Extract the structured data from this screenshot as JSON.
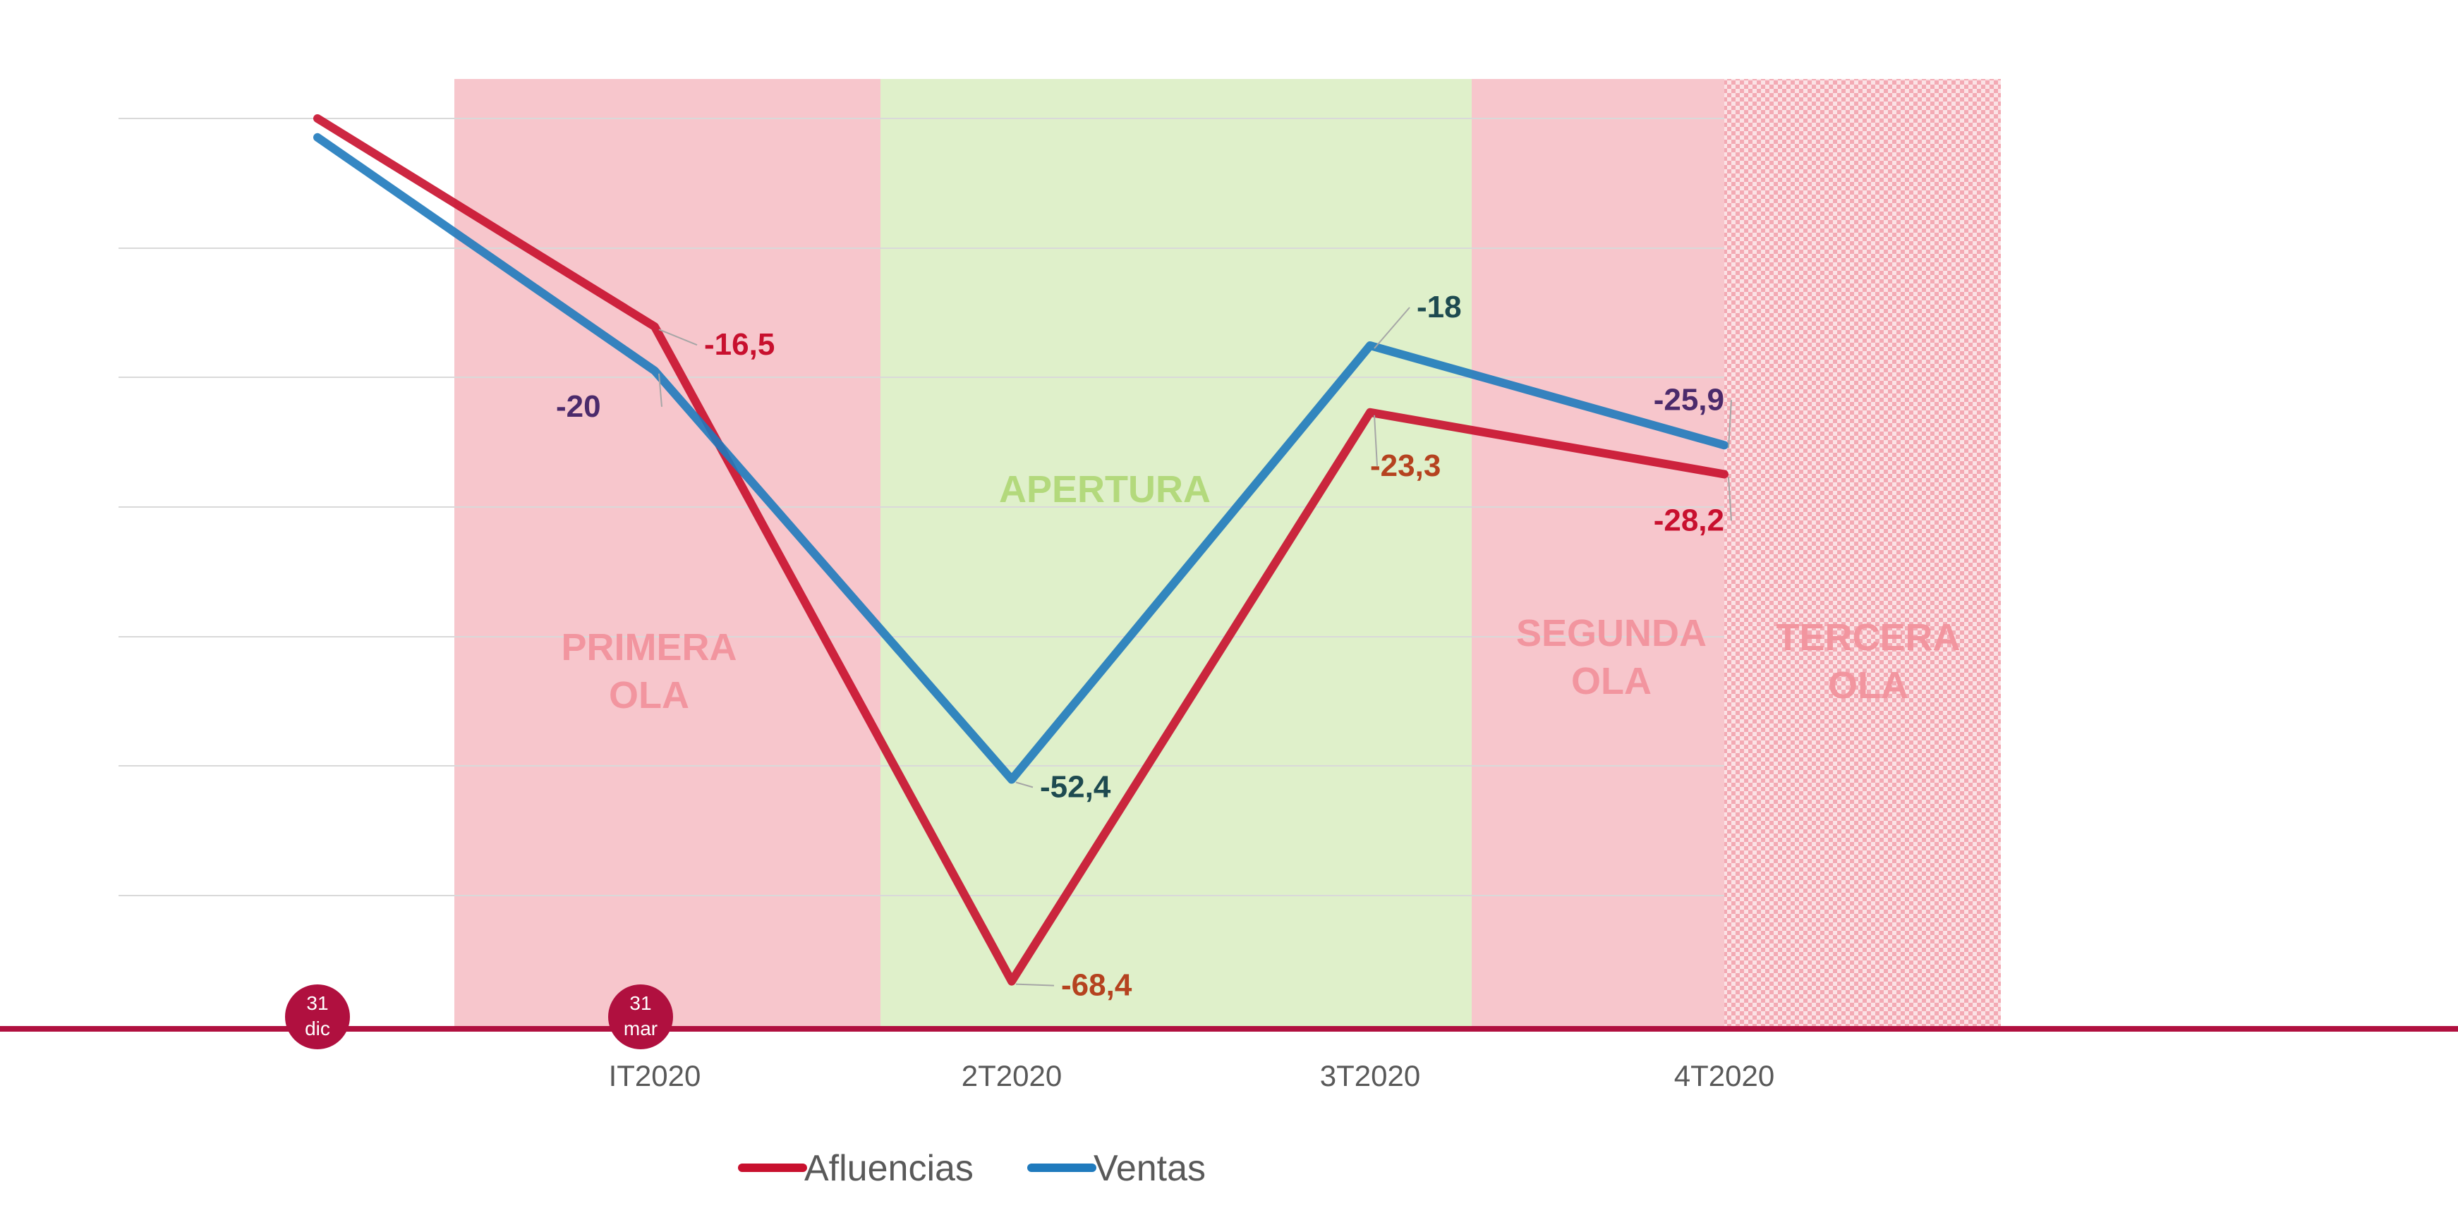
{
  "chart_data": {
    "type": "line",
    "categories": [
      "31 dic",
      "IT2020",
      "2T2020",
      "3T2020",
      "4T2020"
    ],
    "ylim": [
      -72,
      0
    ],
    "grid": true,
    "legend_position": "bottom",
    "series": [
      {
        "name": "Afluencias",
        "color": "#c8102e",
        "values": [
          0,
          -16.5,
          -68.4,
          -23.3,
          -28.2
        ],
        "labels": [
          "",
          "-16,5",
          "-68,4",
          "-23,3",
          "-28,2"
        ],
        "label_colors": [
          "",
          "#c8102e",
          "#b5421f",
          "#b5421f",
          "#c8102e"
        ]
      },
      {
        "name": "Ventas",
        "color": "#1f7abd",
        "values": [
          -1.5,
          -20,
          -52.4,
          -18,
          -25.9
        ],
        "labels": [
          "",
          "-20",
          "-52,4",
          "-18",
          "-25,9"
        ],
        "label_colors": [
          "",
          "#4b2a6b",
          "#1e4a50",
          "#1e4a50",
          "#4b2a6b"
        ]
      }
    ],
    "bands": [
      {
        "label_lines": [
          "PRIMERA",
          "OLA"
        ],
        "fill": "#f7c6cc",
        "text_color": "#f2959f",
        "pattern": false
      },
      {
        "label_lines": [
          "APERTURA"
        ],
        "fill": "#dff0ca",
        "text_color": "#b3d97c",
        "pattern": false
      },
      {
        "label_lines": [
          "SEGUNDA",
          "OLA"
        ],
        "fill": "#f7c6cc",
        "text_color": "#f2959f",
        "pattern": false
      },
      {
        "label_lines": [
          "TERCERA",
          "OLA"
        ],
        "fill": "#f9d3d8",
        "text_color": "#f2959f",
        "pattern": true
      }
    ],
    "x_tick_labels": [
      "IT2020",
      "2T2020",
      "3T2020",
      "4T2020"
    ],
    "date_markers": [
      {
        "day": "31",
        "month": "dic"
      },
      {
        "day": "31",
        "month": "mar"
      }
    ],
    "axis_color": "#b0103f"
  }
}
